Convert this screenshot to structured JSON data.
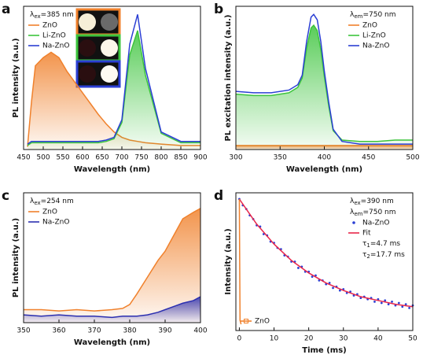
{
  "chart_data": [
    {
      "type": "line",
      "panel_label": "a",
      "xlabel": "Wavelength (nm)",
      "ylabel": "PL intensity (a.u.)",
      "x": [
        460,
        470,
        480,
        500,
        520,
        540,
        560,
        580,
        600,
        620,
        640,
        660,
        680,
        700,
        720,
        740,
        760,
        800,
        850,
        900
      ],
      "series": [
        {
          "name": "ZnO",
          "color": "#f0812c",
          "area": true,
          "values": [
            2,
            35,
            62,
            68,
            72,
            68,
            58,
            50,
            42,
            34,
            26,
            19,
            13,
            9,
            7,
            6,
            5,
            4,
            3,
            3
          ]
        },
        {
          "name": "Li-ZnO",
          "color": "#3cc43c",
          "area": true,
          "values": [
            3,
            5,
            5,
            5,
            5,
            5,
            5,
            5,
            5,
            5,
            5,
            6,
            8,
            20,
            70,
            88,
            55,
            12,
            5,
            5
          ]
        },
        {
          "name": "Na-ZnO",
          "color": "#2b3fd4",
          "values": [
            4,
            6,
            6,
            6,
            6,
            6,
            6,
            6,
            6,
            6,
            6,
            7,
            9,
            22,
            78,
            100,
            60,
            13,
            6,
            6
          ]
        }
      ],
      "xlim": [
        450,
        900
      ],
      "xticks": [
        450,
        500,
        550,
        600,
        650,
        700,
        750,
        800,
        850,
        900
      ],
      "ylim": [
        0,
        106
      ],
      "annotations": [
        [
          "λ",
          "ex",
          "=385 nm"
        ]
      ],
      "legend_position": "upper left"
    },
    {
      "type": "line",
      "panel_label": "b",
      "xlabel": "Wavelength (nm)",
      "ylabel": "PL excitation intensity (a.u.)",
      "x": [
        300,
        320,
        340,
        360,
        370,
        375,
        380,
        385,
        388,
        392,
        396,
        400,
        405,
        410,
        420,
        440,
        460,
        480,
        500
      ],
      "series": [
        {
          "name": "ZnO",
          "color": "#f0812c",
          "area": true,
          "values": [
            3,
            3,
            3,
            3,
            3,
            3,
            3,
            3,
            3,
            3,
            3,
            3,
            3,
            3,
            3,
            3,
            3,
            3,
            3
          ]
        },
        {
          "name": "Li-ZnO",
          "color": "#3cc43c",
          "area": true,
          "values": [
            41,
            40,
            40,
            42,
            46,
            53,
            75,
            90,
            92,
            88,
            74,
            54,
            32,
            14,
            7,
            6,
            6,
            7,
            7
          ]
        },
        {
          "name": "Na-ZnO",
          "color": "#2b3fd4",
          "values": [
            43,
            42,
            42,
            44,
            48,
            55,
            80,
            98,
            100,
            96,
            80,
            58,
            35,
            15,
            6,
            4,
            4,
            4,
            4
          ]
        }
      ],
      "xlim": [
        300,
        500
      ],
      "xticks": [
        300,
        350,
        400,
        450,
        500
      ],
      "ylim": [
        0,
        106
      ],
      "annotations": [
        [
          "λ",
          "em",
          "=750 nm"
        ]
      ],
      "legend_position": "upper right"
    },
    {
      "type": "line",
      "panel_label": "c",
      "xlabel": "Wavelength (nm)",
      "ylabel": "PL intensity (a.u.)",
      "x": [
        350,
        355,
        360,
        365,
        370,
        375,
        378,
        380,
        382,
        385,
        388,
        390,
        393,
        395,
        398,
        400
      ],
      "series": [
        {
          "name": "ZnO",
          "color": "#f0812c",
          "area": true,
          "values": [
            10,
            10,
            9,
            10,
            9,
            10,
            11,
            14,
            22,
            35,
            48,
            55,
            70,
            80,
            85,
            88
          ]
        },
        {
          "name": "Na-ZnO",
          "color": "#2b2fb0",
          "area": true,
          "values": [
            6,
            5,
            6,
            5,
            5,
            4,
            5,
            5,
            5,
            6,
            8,
            10,
            13,
            15,
            17,
            20
          ]
        }
      ],
      "xlim": [
        350,
        400
      ],
      "xticks": [
        350,
        360,
        370,
        380,
        390,
        400
      ],
      "ylim": [
        0,
        100
      ],
      "annotations": [
        [
          "λ",
          "ex",
          "=254 nm"
        ]
      ],
      "legend_position": "upper left"
    },
    {
      "type": "line",
      "panel_label": "d",
      "xlabel": "Time (ms)",
      "ylabel": "Intensity (a.u.)",
      "series": [
        {
          "name": "Na-ZnO",
          "color": "#2b3fd4",
          "mode": "scatter",
          "x": [
            0,
            1,
            2,
            3,
            4,
            5,
            6,
            7,
            8,
            9,
            10,
            11,
            12,
            13,
            14,
            15,
            16,
            17,
            18,
            19,
            20,
            21,
            22,
            23,
            24,
            25,
            26,
            27,
            28,
            29,
            30,
            31,
            32,
            33,
            34,
            35,
            36,
            37,
            38,
            39,
            40,
            41,
            42,
            43,
            44,
            45,
            46,
            47,
            48,
            49,
            50
          ],
          "values": [
            100,
            95,
            92,
            87,
            84,
            79,
            78,
            72,
            71,
            66,
            65,
            61,
            60,
            55,
            54,
            50,
            50,
            45,
            46,
            42,
            42,
            38,
            39,
            35,
            35,
            32,
            33,
            29,
            30,
            27,
            28,
            25,
            26,
            23,
            24,
            21,
            22,
            20,
            21,
            18,
            20,
            17,
            19,
            16,
            18,
            15,
            17,
            14,
            16,
            13,
            15
          ]
        },
        {
          "name": "Fit",
          "color": "#e8264a",
          "x": [
            0,
            5,
            10,
            15,
            20,
            25,
            30,
            35,
            40,
            45,
            50
          ],
          "values": [
            100,
            80,
            64,
            51,
            41,
            33,
            27,
            22,
            19,
            16,
            14
          ]
        },
        {
          "name": "ZnO",
          "color": "#f0812c",
          "mode": "square",
          "legend_position": "lower left",
          "x": [
            0,
            0.2,
            0.5
          ],
          "values": [
            100,
            3,
            0
          ]
        }
      ],
      "xlim": [
        -1,
        50
      ],
      "xticks": [
        0,
        10,
        20,
        30,
        40,
        50
      ],
      "ylim": [
        -5,
        105
      ],
      "annotations": [
        [
          "λ",
          "ex",
          "=390 nm"
        ],
        [
          "λ",
          "em",
          "=750 nm"
        ]
      ],
      "notes": [
        [
          "τ",
          "1",
          "=4.7 ms"
        ],
        [
          "τ",
          "2",
          "=17.7 ms"
        ]
      ],
      "legend_position": "upper right"
    }
  ]
}
